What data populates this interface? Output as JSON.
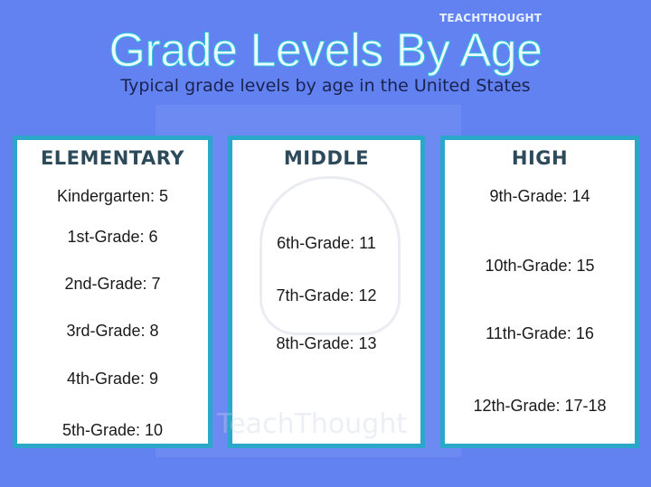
{
  "brand": "TEACHTHOUGHT",
  "title": "Grade Levels By Age",
  "subtitle": "Typical grade levels by age in the United States",
  "watermark": "TeachThought",
  "columns": [
    {
      "heading": "ELEMENTARY",
      "items": [
        "Kindergarten: 5",
        "1st-Grade: 6",
        "2nd-Grade: 7",
        "3rd-Grade: 8",
        "4th-Grade: 9",
        "5th-Grade: 10"
      ]
    },
    {
      "heading": "MIDDLE",
      "items": [
        "6th-Grade: 11",
        "7th-Grade: 12",
        "8th-Grade: 13"
      ]
    },
    {
      "heading": "HIGH",
      "items": [
        "9th-Grade: 14",
        "10th-Grade: 15",
        "11th-Grade: 16",
        "12th-Grade: 17-18"
      ]
    }
  ],
  "colors": {
    "background": "#6282f2",
    "box_border": "#2aa7c9",
    "heading": "#2c4a5a"
  }
}
